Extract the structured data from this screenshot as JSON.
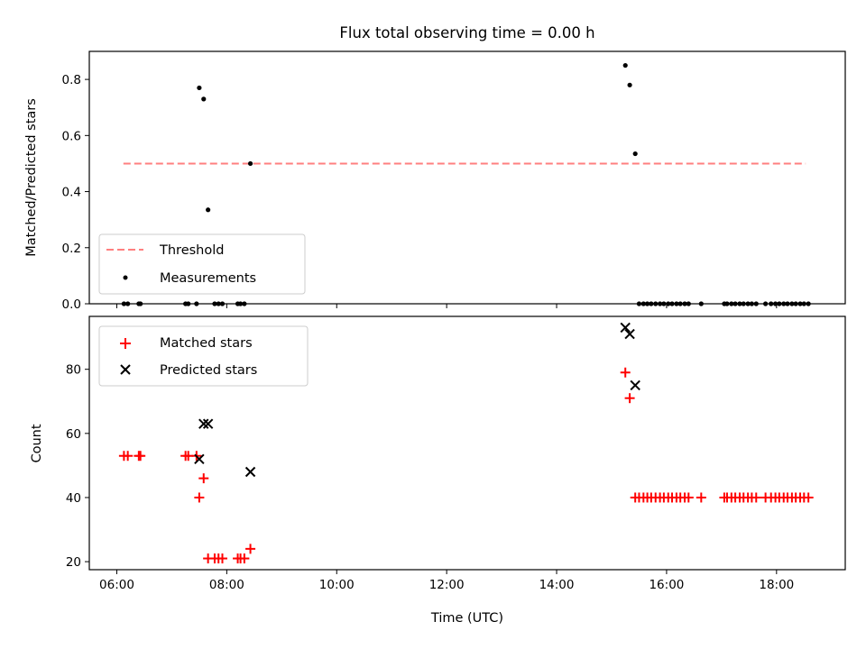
{
  "chart_data": [
    {
      "id": "top",
      "type": "scatter",
      "title": "Flux total observing time = 0.00 h",
      "xlabel": "",
      "ylabel": "Matched/Predicted stars",
      "xlim": [
        5.5,
        19.25
      ],
      "ylim": [
        0,
        0.9
      ],
      "yticks": [
        0.0,
        0.2,
        0.4,
        0.6,
        0.8
      ],
      "ytick_labels": [
        "0.0",
        "0.2",
        "0.4",
        "0.6",
        "0.8"
      ],
      "xticks": [
        6,
        8,
        10,
        12,
        14,
        16,
        18
      ],
      "show_xtick_labels": false,
      "grid": false,
      "legend_position": "lower-left",
      "series": [
        {
          "name": "Threshold",
          "kind": "dashed-line",
          "color": "#ff7f7f",
          "x": [
            6.12,
            18.53
          ],
          "y": [
            0.5,
            0.5
          ]
        },
        {
          "name": "Measurements",
          "kind": "dots",
          "color": "#000000",
          "x": [
            6.13,
            6.2,
            6.4,
            6.43,
            7.25,
            7.3,
            7.45,
            7.5,
            7.58,
            7.66,
            7.78,
            7.85,
            7.92,
            8.2,
            8.25,
            8.32,
            8.43,
            15.25,
            15.33,
            15.43,
            15.5,
            15.58,
            15.65,
            15.72,
            15.8,
            15.88,
            15.95,
            16.03,
            16.1,
            16.18,
            16.25,
            16.33,
            16.4,
            16.63,
            17.05,
            17.1,
            17.18,
            17.25,
            17.33,
            17.4,
            17.48,
            17.55,
            17.63,
            17.8,
            17.9,
            17.98,
            18.05,
            18.13,
            18.2,
            18.28,
            18.35,
            18.43,
            18.5,
            18.58
          ],
          "y": [
            0.0,
            0.0,
            0.0,
            0.0,
            0.0,
            0.0,
            0.0,
            0.77,
            0.73,
            0.335,
            0.0,
            0.0,
            0.0,
            0.0,
            0.0,
            0.0,
            0.5,
            0.85,
            0.78,
            0.535,
            0.0,
            0.0,
            0.0,
            0.0,
            0.0,
            0.0,
            0.0,
            0.0,
            0.0,
            0.0,
            0.0,
            0.0,
            0.0,
            0.0,
            0.0,
            0.0,
            0.0,
            0.0,
            0.0,
            0.0,
            0.0,
            0.0,
            0.0,
            0.0,
            0.0,
            0.0,
            0.0,
            0.0,
            0.0,
            0.0,
            0.0,
            0.0,
            0.0,
            0.0
          ]
        }
      ]
    },
    {
      "id": "bottom",
      "type": "scatter",
      "title": "",
      "xlabel": "Time (UTC)",
      "ylabel": "Count",
      "xlim": [
        5.5,
        19.25
      ],
      "ylim": [
        17.5,
        96.5
      ],
      "yticks": [
        20,
        40,
        60,
        80
      ],
      "ytick_labels": [
        "20",
        "40",
        "60",
        "80"
      ],
      "xticks": [
        6,
        8,
        10,
        12,
        14,
        16,
        18
      ],
      "xtick_labels": [
        "06:00",
        "08:00",
        "10:00",
        "12:00",
        "14:00",
        "16:00",
        "18:00"
      ],
      "grid": false,
      "legend_position": "upper-left",
      "series": [
        {
          "name": "Matched stars",
          "kind": "plus",
          "color": "#ff0000",
          "x": [
            6.13,
            6.2,
            6.4,
            6.43,
            7.25,
            7.3,
            7.45,
            7.5,
            7.58,
            7.66,
            7.78,
            7.85,
            7.92,
            8.2,
            8.25,
            8.32,
            8.43,
            15.25,
            15.33,
            15.43,
            15.5,
            15.58,
            15.65,
            15.72,
            15.8,
            15.88,
            15.95,
            16.03,
            16.1,
            16.18,
            16.25,
            16.33,
            16.4,
            16.63,
            17.05,
            17.1,
            17.18,
            17.25,
            17.33,
            17.4,
            17.48,
            17.55,
            17.63,
            17.8,
            17.9,
            17.98,
            18.05,
            18.13,
            18.2,
            18.28,
            18.35,
            18.43,
            18.5,
            18.58
          ],
          "y": [
            53,
            53,
            53,
            53,
            53,
            53,
            53,
            40,
            46,
            21,
            21,
            21,
            21,
            21,
            21,
            21,
            24,
            79,
            71,
            40,
            40,
            40,
            40,
            40,
            40,
            40,
            40,
            40,
            40,
            40,
            40,
            40,
            40,
            40,
            40,
            40,
            40,
            40,
            40,
            40,
            40,
            40,
            40,
            40,
            40,
            40,
            40,
            40,
            40,
            40,
            40,
            40,
            40,
            40
          ]
        },
        {
          "name": "Predicted stars",
          "kind": "cross",
          "color": "#000000",
          "x": [
            7.5,
            7.58,
            7.66,
            8.43,
            15.25,
            15.33,
            15.43
          ],
          "y": [
            52,
            63,
            63,
            48,
            93,
            91,
            75
          ]
        }
      ]
    }
  ]
}
